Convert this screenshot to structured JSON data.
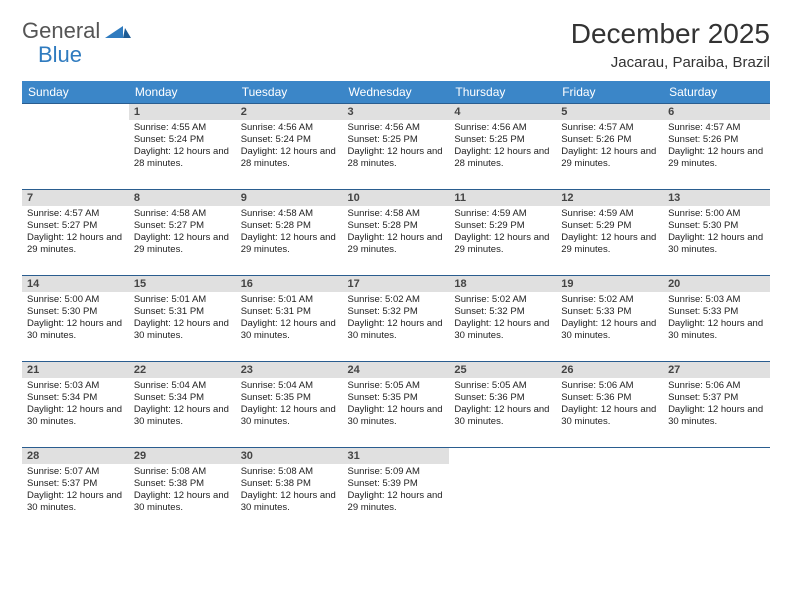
{
  "brand": {
    "part1": "General",
    "part2": "Blue"
  },
  "title": "December 2025",
  "location": "Jacarau, Paraiba, Brazil",
  "colors": {
    "header_bg": "#3b86c8",
    "header_text": "#ffffff",
    "row_border": "#2a5d8f",
    "daynum_bg": "#e0e0e0",
    "logo_blue": "#2f7bbf",
    "page_bg": "#ffffff"
  },
  "typography": {
    "month_title_size": 28,
    "location_size": 15,
    "weekday_size": 12,
    "daynum_size": 11,
    "body_size": 9.5
  },
  "weekdays": [
    "Sunday",
    "Monday",
    "Tuesday",
    "Wednesday",
    "Thursday",
    "Friday",
    "Saturday"
  ],
  "weeks": [
    [
      {
        "n": "",
        "sr": "",
        "ss": "",
        "dl": ""
      },
      {
        "n": "1",
        "sr": "Sunrise: 4:55 AM",
        "ss": "Sunset: 5:24 PM",
        "dl": "Daylight: 12 hours and 28 minutes."
      },
      {
        "n": "2",
        "sr": "Sunrise: 4:56 AM",
        "ss": "Sunset: 5:24 PM",
        "dl": "Daylight: 12 hours and 28 minutes."
      },
      {
        "n": "3",
        "sr": "Sunrise: 4:56 AM",
        "ss": "Sunset: 5:25 PM",
        "dl": "Daylight: 12 hours and 28 minutes."
      },
      {
        "n": "4",
        "sr": "Sunrise: 4:56 AM",
        "ss": "Sunset: 5:25 PM",
        "dl": "Daylight: 12 hours and 28 minutes."
      },
      {
        "n": "5",
        "sr": "Sunrise: 4:57 AM",
        "ss": "Sunset: 5:26 PM",
        "dl": "Daylight: 12 hours and 29 minutes."
      },
      {
        "n": "6",
        "sr": "Sunrise: 4:57 AM",
        "ss": "Sunset: 5:26 PM",
        "dl": "Daylight: 12 hours and 29 minutes."
      }
    ],
    [
      {
        "n": "7",
        "sr": "Sunrise: 4:57 AM",
        "ss": "Sunset: 5:27 PM",
        "dl": "Daylight: 12 hours and 29 minutes."
      },
      {
        "n": "8",
        "sr": "Sunrise: 4:58 AM",
        "ss": "Sunset: 5:27 PM",
        "dl": "Daylight: 12 hours and 29 minutes."
      },
      {
        "n": "9",
        "sr": "Sunrise: 4:58 AM",
        "ss": "Sunset: 5:28 PM",
        "dl": "Daylight: 12 hours and 29 minutes."
      },
      {
        "n": "10",
        "sr": "Sunrise: 4:58 AM",
        "ss": "Sunset: 5:28 PM",
        "dl": "Daylight: 12 hours and 29 minutes."
      },
      {
        "n": "11",
        "sr": "Sunrise: 4:59 AM",
        "ss": "Sunset: 5:29 PM",
        "dl": "Daylight: 12 hours and 29 minutes."
      },
      {
        "n": "12",
        "sr": "Sunrise: 4:59 AM",
        "ss": "Sunset: 5:29 PM",
        "dl": "Daylight: 12 hours and 29 minutes."
      },
      {
        "n": "13",
        "sr": "Sunrise: 5:00 AM",
        "ss": "Sunset: 5:30 PM",
        "dl": "Daylight: 12 hours and 30 minutes."
      }
    ],
    [
      {
        "n": "14",
        "sr": "Sunrise: 5:00 AM",
        "ss": "Sunset: 5:30 PM",
        "dl": "Daylight: 12 hours and 30 minutes."
      },
      {
        "n": "15",
        "sr": "Sunrise: 5:01 AM",
        "ss": "Sunset: 5:31 PM",
        "dl": "Daylight: 12 hours and 30 minutes."
      },
      {
        "n": "16",
        "sr": "Sunrise: 5:01 AM",
        "ss": "Sunset: 5:31 PM",
        "dl": "Daylight: 12 hours and 30 minutes."
      },
      {
        "n": "17",
        "sr": "Sunrise: 5:02 AM",
        "ss": "Sunset: 5:32 PM",
        "dl": "Daylight: 12 hours and 30 minutes."
      },
      {
        "n": "18",
        "sr": "Sunrise: 5:02 AM",
        "ss": "Sunset: 5:32 PM",
        "dl": "Daylight: 12 hours and 30 minutes."
      },
      {
        "n": "19",
        "sr": "Sunrise: 5:02 AM",
        "ss": "Sunset: 5:33 PM",
        "dl": "Daylight: 12 hours and 30 minutes."
      },
      {
        "n": "20",
        "sr": "Sunrise: 5:03 AM",
        "ss": "Sunset: 5:33 PM",
        "dl": "Daylight: 12 hours and 30 minutes."
      }
    ],
    [
      {
        "n": "21",
        "sr": "Sunrise: 5:03 AM",
        "ss": "Sunset: 5:34 PM",
        "dl": "Daylight: 12 hours and 30 minutes."
      },
      {
        "n": "22",
        "sr": "Sunrise: 5:04 AM",
        "ss": "Sunset: 5:34 PM",
        "dl": "Daylight: 12 hours and 30 minutes."
      },
      {
        "n": "23",
        "sr": "Sunrise: 5:04 AM",
        "ss": "Sunset: 5:35 PM",
        "dl": "Daylight: 12 hours and 30 minutes."
      },
      {
        "n": "24",
        "sr": "Sunrise: 5:05 AM",
        "ss": "Sunset: 5:35 PM",
        "dl": "Daylight: 12 hours and 30 minutes."
      },
      {
        "n": "25",
        "sr": "Sunrise: 5:05 AM",
        "ss": "Sunset: 5:36 PM",
        "dl": "Daylight: 12 hours and 30 minutes."
      },
      {
        "n": "26",
        "sr": "Sunrise: 5:06 AM",
        "ss": "Sunset: 5:36 PM",
        "dl": "Daylight: 12 hours and 30 minutes."
      },
      {
        "n": "27",
        "sr": "Sunrise: 5:06 AM",
        "ss": "Sunset: 5:37 PM",
        "dl": "Daylight: 12 hours and 30 minutes."
      }
    ],
    [
      {
        "n": "28",
        "sr": "Sunrise: 5:07 AM",
        "ss": "Sunset: 5:37 PM",
        "dl": "Daylight: 12 hours and 30 minutes."
      },
      {
        "n": "29",
        "sr": "Sunrise: 5:08 AM",
        "ss": "Sunset: 5:38 PM",
        "dl": "Daylight: 12 hours and 30 minutes."
      },
      {
        "n": "30",
        "sr": "Sunrise: 5:08 AM",
        "ss": "Sunset: 5:38 PM",
        "dl": "Daylight: 12 hours and 30 minutes."
      },
      {
        "n": "31",
        "sr": "Sunrise: 5:09 AM",
        "ss": "Sunset: 5:39 PM",
        "dl": "Daylight: 12 hours and 29 minutes."
      },
      {
        "n": "",
        "sr": "",
        "ss": "",
        "dl": ""
      },
      {
        "n": "",
        "sr": "",
        "ss": "",
        "dl": ""
      },
      {
        "n": "",
        "sr": "",
        "ss": "",
        "dl": ""
      }
    ]
  ]
}
